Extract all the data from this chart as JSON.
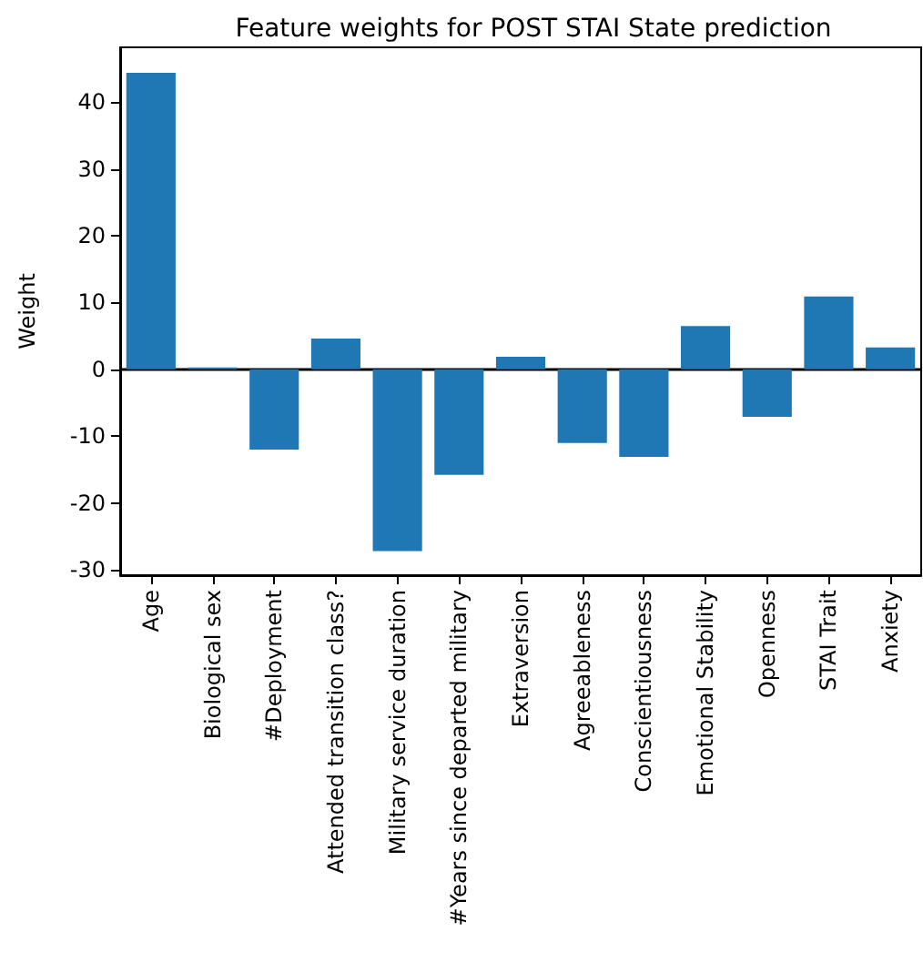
{
  "chart_data": {
    "type": "bar",
    "title": "Feature weights for POST STAI State prediction",
    "ylabel": "Weight",
    "categories": [
      "Age",
      "Biological sex",
      "#Deployment",
      "Attended transition class?",
      "Military service duration",
      "#Years since departed military",
      "Extraversion",
      "Agreeableness",
      "Conscientiousness",
      "Emotional Stability",
      "Openness",
      "STAI Trait",
      "Anxiety"
    ],
    "values": [
      44.4,
      0.3,
      -12.0,
      4.6,
      -27.2,
      -15.8,
      1.9,
      -11.0,
      -13.1,
      6.5,
      -7.1,
      10.9,
      3.3
    ],
    "color": "#1f77b4",
    "ylim": [
      -30.8,
      48.2
    ],
    "yticks": [
      -30,
      -20,
      -10,
      0,
      10,
      20,
      30,
      40
    ],
    "grid": false,
    "ref_lines": [
      {
        "axis": "y",
        "value": 0,
        "color": "#000000"
      }
    ]
  }
}
